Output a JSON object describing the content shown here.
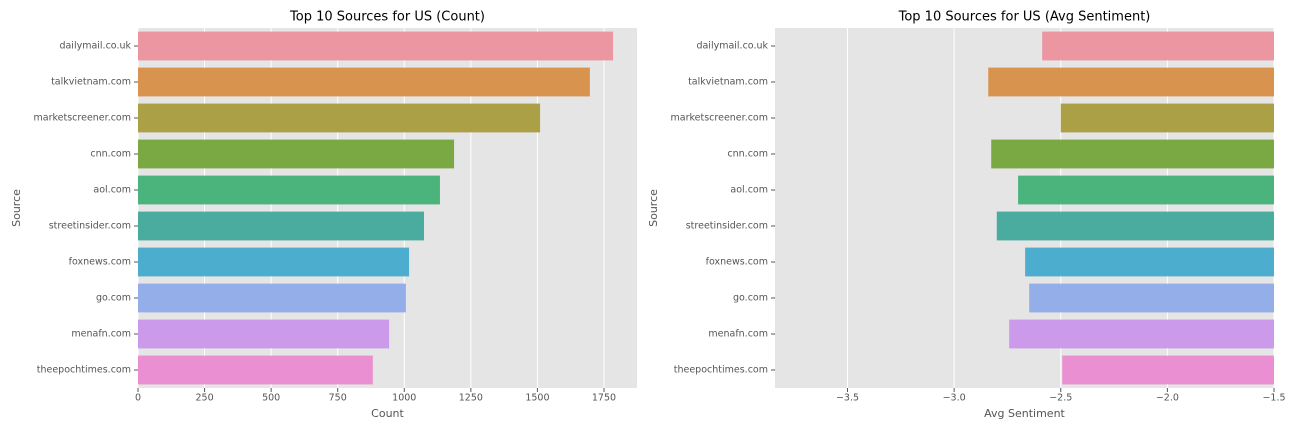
{
  "chart_data": [
    {
      "type": "barh",
      "title": "Top 10 Sources for US (Count)",
      "x_label": "Count",
      "y_label": "Source",
      "categories": [
        "dailymail.co.uk",
        "talkvietnam.com",
        "marketscreener.com",
        "cnn.com",
        "aol.com",
        "streetinsider.com",
        "foxnews.com",
        "go.com",
        "menafn.com",
        "theepochtimes.com"
      ],
      "values": [
        1784,
        1697,
        1510,
        1187,
        1134,
        1074,
        1018,
        1006,
        943,
        882
      ],
      "colors": [
        "#ec96a2",
        "#d8944e",
        "#aba045",
        "#7aa843",
        "#4bb37c",
        "#4aab9f",
        "#4cadcf",
        "#93aee9",
        "#cc9aea",
        "#ea90d2"
      ],
      "xlim": [
        0,
        1874
      ],
      "xticks": [
        0,
        250,
        500,
        750,
        1000,
        1250,
        1500,
        1750
      ],
      "grid": true
    },
    {
      "type": "barh",
      "title": "Top 10 Sources for US (Avg Sentiment)",
      "x_label": "Avg Sentiment",
      "y_label": "Source",
      "categories": [
        "dailymail.co.uk",
        "talkvietnam.com",
        "marketscreener.com",
        "cnn.com",
        "aol.com",
        "streetinsider.com",
        "foxnews.com",
        "go.com",
        "menafn.com",
        "theepochtimes.com"
      ],
      "values": [
        -2.587,
        -2.84,
        -2.5,
        -2.826,
        -2.7,
        -2.8,
        -2.667,
        -2.648,
        -2.742,
        -2.493
      ],
      "colors": [
        "#ec96a2",
        "#d8944e",
        "#aba045",
        "#7aa843",
        "#4bb37c",
        "#4aab9f",
        "#4cadcf",
        "#93aee9",
        "#cc9aea",
        "#ea90d2"
      ],
      "xlim": [
        -3.84,
        -1.5
      ],
      "xticks": [
        {
          "value": -3.5,
          "label": "−3.5"
        },
        {
          "value": -3.0,
          "label": "−3.0"
        },
        {
          "value": -2.5,
          "label": "−2.5"
        },
        {
          "value": -2.0,
          "label": "−2.0"
        },
        {
          "value": -1.5,
          "label": "−1.5"
        }
      ],
      "grid": true
    }
  ]
}
